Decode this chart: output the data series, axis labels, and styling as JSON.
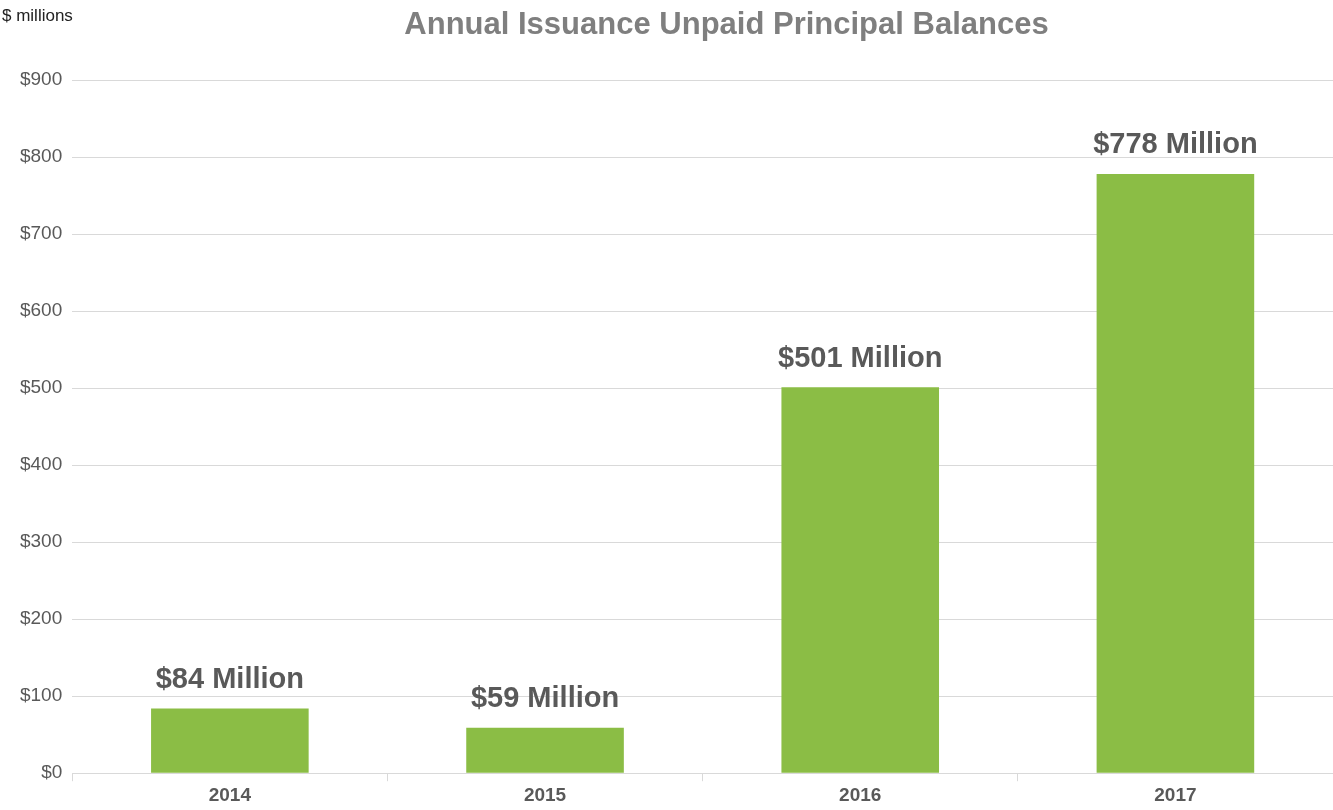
{
  "chart_data": {
    "type": "bar",
    "title": "Annual Issuance Unpaid Principal Balances",
    "ylabel": "$ millions",
    "categories": [
      "2014",
      "2015",
      "2016",
      "2017"
    ],
    "values": [
      84,
      59,
      501,
      778
    ],
    "value_labels": [
      "$84 Million",
      "$59 Million",
      "$501 Million",
      "$778 Million"
    ],
    "color": "#8bbd45",
    "ylim": [
      0,
      900
    ],
    "yticks": [
      {
        "value": 0,
        "label": "$0"
      },
      {
        "value": 100,
        "label": "$100"
      },
      {
        "value": 200,
        "label": "$200"
      },
      {
        "value": 300,
        "label": "$300"
      },
      {
        "value": 400,
        "label": "$400"
      },
      {
        "value": 500,
        "label": "$500"
      },
      {
        "value": 600,
        "label": "$600"
      },
      {
        "value": 700,
        "label": "$700"
      },
      {
        "value": 800,
        "label": "$800"
      },
      {
        "value": 900,
        "label": "$900"
      }
    ],
    "grid": "y"
  }
}
